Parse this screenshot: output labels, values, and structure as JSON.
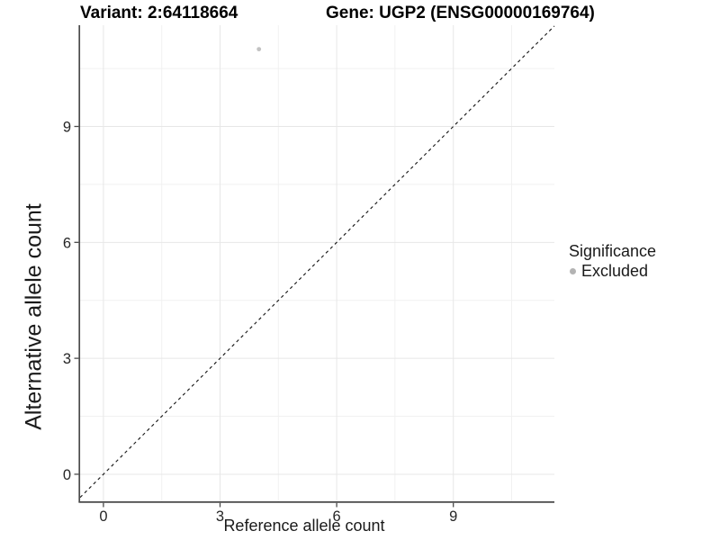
{
  "header": {
    "title_left": "Variant: 2:64118664",
    "title_right": "Gene: UGP2 (ENSG00000169764)"
  },
  "chart_data": {
    "type": "scatter",
    "title_left": "Variant: 2:64118664",
    "title_right": "Gene: UGP2 (ENSG00000169764)",
    "xlabel": "Reference allele count",
    "ylabel": "Alternative allele count",
    "x_ticks": [
      0,
      3,
      6,
      9
    ],
    "y_ticks": [
      0,
      3,
      6,
      9
    ],
    "x_minor_ticks": [
      1.5,
      4.5,
      7.5,
      10.5
    ],
    "y_minor_ticks": [
      1.5,
      4.5,
      7.5,
      10.5
    ],
    "xlim": [
      -0.6,
      11.6
    ],
    "ylim": [
      -0.7,
      11.62
    ],
    "grid": "major+minor",
    "background": "#ffffff",
    "series": [
      {
        "name": "Excluded",
        "color": "#c2c2c2",
        "points": [
          {
            "x": 4,
            "y": 11
          }
        ]
      }
    ],
    "reference_line": {
      "type": "identity",
      "slope": 1,
      "intercept": 0,
      "style": "dashed",
      "color": "#1a1a1a"
    },
    "legend": {
      "title": "Significance",
      "position": "right",
      "items": [
        {
          "label": "Excluded",
          "color": "#b3b3b3"
        }
      ]
    },
    "colors": {
      "gridline_major": "#e7e7e7",
      "gridline_minor": "#f1f1f1",
      "axis_line": "#4a4a4a",
      "tick_text": "#262626"
    }
  }
}
